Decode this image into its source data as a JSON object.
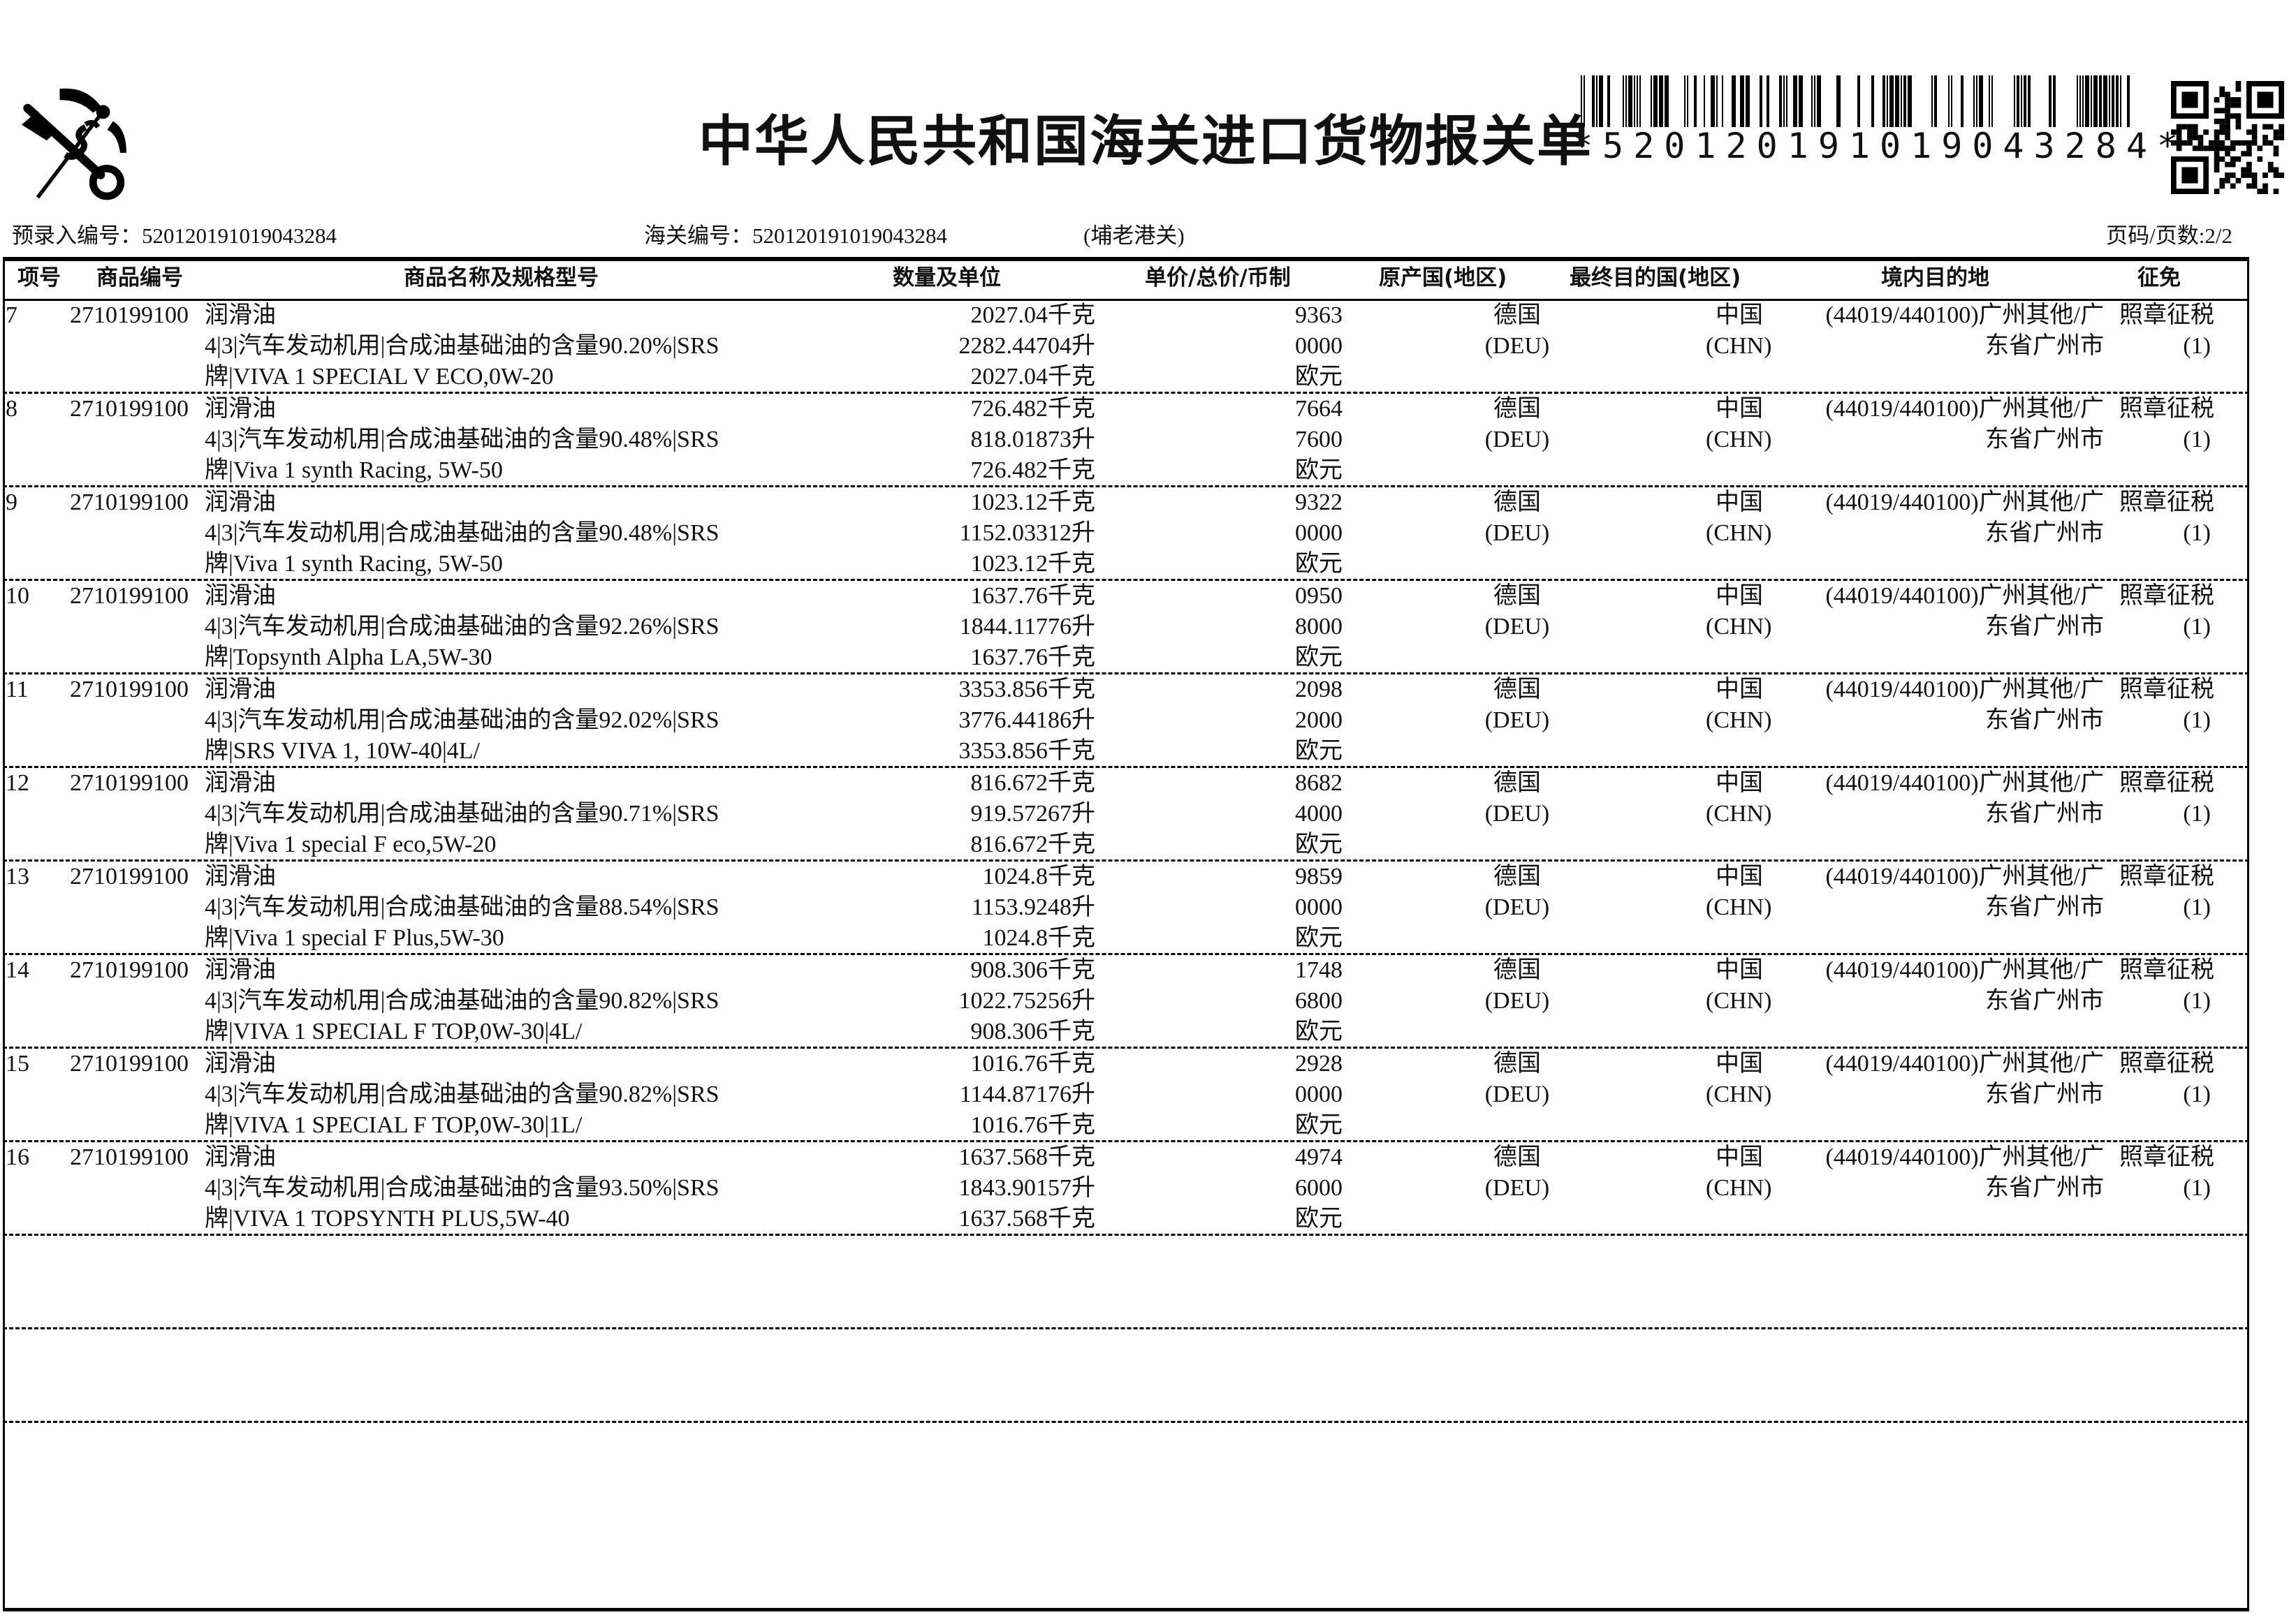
{
  "header": {
    "title": "中华人民共和国海关进口货物报关单",
    "barcode_text": "*520120191019043284*",
    "pre_entry_label": "预录入编号：",
    "pre_entry_no": "520120191019043284",
    "customs_no_label": "海关编号：",
    "customs_no": "520120191019043284",
    "customs_office": "(埔老港关)",
    "page_info": "页码/页数:2/2"
  },
  "columns": [
    "项号",
    "商品编号",
    "商品名称及规格型号",
    "数量及单位",
    "单价/总价/币制",
    "原产国(地区)",
    "最终目的国(地区)",
    "境内目的地",
    "征免"
  ],
  "rows": [
    {
      "no": "7",
      "code": "2710199100",
      "name": "润滑油",
      "spec": "4|3|汽车发动机用|合成油基础油的含量90.20%|SRS",
      "brand": "牌|VIVA 1 SPECIAL V ECO,0W-20",
      "qty": [
        "2027.04千克",
        "2282.44704升",
        "2027.04千克"
      ],
      "price": [
        "9363",
        "0000",
        "欧元"
      ],
      "origin": [
        "德国",
        "(DEU)"
      ],
      "dest_country": [
        "中国",
        "(CHN)"
      ],
      "domestic": [
        "(44019/440100)广州其他/广",
        "东省广州市"
      ],
      "levy": [
        "照章征税",
        "(1)"
      ]
    },
    {
      "no": "8",
      "code": "2710199100",
      "name": "润滑油",
      "spec": "4|3|汽车发动机用|合成油基础油的含量90.48%|SRS",
      "brand": "牌|Viva 1 synth Racing, 5W-50",
      "qty": [
        "726.482千克",
        "818.01873升",
        "726.482千克"
      ],
      "price": [
        "7664",
        "7600",
        "欧元"
      ],
      "origin": [
        "德国",
        "(DEU)"
      ],
      "dest_country": [
        "中国",
        "(CHN)"
      ],
      "domestic": [
        "(44019/440100)广州其他/广",
        "东省广州市"
      ],
      "levy": [
        "照章征税",
        "(1)"
      ]
    },
    {
      "no": "9",
      "code": "2710199100",
      "name": "润滑油",
      "spec": "4|3|汽车发动机用|合成油基础油的含量90.48%|SRS",
      "brand": "牌|Viva 1 synth Racing, 5W-50",
      "qty": [
        "1023.12千克",
        "1152.03312升",
        "1023.12千克"
      ],
      "price": [
        "9322",
        "0000",
        "欧元"
      ],
      "origin": [
        "德国",
        "(DEU)"
      ],
      "dest_country": [
        "中国",
        "(CHN)"
      ],
      "domestic": [
        "(44019/440100)广州其他/广",
        "东省广州市"
      ],
      "levy": [
        "照章征税",
        "(1)"
      ]
    },
    {
      "no": "10",
      "code": "2710199100",
      "name": "润滑油",
      "spec": "4|3|汽车发动机用|合成油基础油的含量92.26%|SRS",
      "brand": "牌|Topsynth Alpha LA,5W-30",
      "qty": [
        "1637.76千克",
        "1844.11776升",
        "1637.76千克"
      ],
      "price": [
        "0950",
        "8000",
        "欧元"
      ],
      "origin": [
        "德国",
        "(DEU)"
      ],
      "dest_country": [
        "中国",
        "(CHN)"
      ],
      "domestic": [
        "(44019/440100)广州其他/广",
        "东省广州市"
      ],
      "levy": [
        "照章征税",
        "(1)"
      ]
    },
    {
      "no": "11",
      "code": "2710199100",
      "name": "润滑油",
      "spec": "4|3|汽车发动机用|合成油基础油的含量92.02%|SRS",
      "brand": "牌|SRS VIVA 1, 10W-40|4L/",
      "qty": [
        "3353.856千克",
        "3776.44186升",
        "3353.856千克"
      ],
      "price": [
        "2098",
        "2000",
        "欧元"
      ],
      "origin": [
        "德国",
        "(DEU)"
      ],
      "dest_country": [
        "中国",
        "(CHN)"
      ],
      "domestic": [
        "(44019/440100)广州其他/广",
        "东省广州市"
      ],
      "levy": [
        "照章征税",
        "(1)"
      ]
    },
    {
      "no": "12",
      "code": "2710199100",
      "name": "润滑油",
      "spec": "4|3|汽车发动机用|合成油基础油的含量90.71%|SRS",
      "brand": "牌|Viva 1 special F eco,5W-20",
      "qty": [
        "816.672千克",
        "919.57267升",
        "816.672千克"
      ],
      "price": [
        "8682",
        "4000",
        "欧元"
      ],
      "origin": [
        "德国",
        "(DEU)"
      ],
      "dest_country": [
        "中国",
        "(CHN)"
      ],
      "domestic": [
        "(44019/440100)广州其他/广",
        "东省广州市"
      ],
      "levy": [
        "照章征税",
        "(1)"
      ]
    },
    {
      "no": "13",
      "code": "2710199100",
      "name": "润滑油",
      "spec": "4|3|汽车发动机用|合成油基础油的含量88.54%|SRS",
      "brand": "牌|Viva 1 special F Plus,5W-30",
      "qty": [
        "1024.8千克",
        "1153.9248升",
        "1024.8千克"
      ],
      "price": [
        "9859",
        "0000",
        "欧元"
      ],
      "origin": [
        "德国",
        "(DEU)"
      ],
      "dest_country": [
        "中国",
        "(CHN)"
      ],
      "domestic": [
        "(44019/440100)广州其他/广",
        "东省广州市"
      ],
      "levy": [
        "照章征税",
        "(1)"
      ]
    },
    {
      "no": "14",
      "code": "2710199100",
      "name": "润滑油",
      "spec": "4|3|汽车发动机用|合成油基础油的含量90.82%|SRS",
      "brand": "牌|VIVA 1 SPECIAL F TOP,0W-30|4L/",
      "qty": [
        "908.306千克",
        "1022.75256升",
        "908.306千克"
      ],
      "price": [
        "1748",
        "6800",
        "欧元"
      ],
      "origin": [
        "德国",
        "(DEU)"
      ],
      "dest_country": [
        "中国",
        "(CHN)"
      ],
      "domestic": [
        "(44019/440100)广州其他/广",
        "东省广州市"
      ],
      "levy": [
        "照章征税",
        "(1)"
      ]
    },
    {
      "no": "15",
      "code": "2710199100",
      "name": "润滑油",
      "spec": "4|3|汽车发动机用|合成油基础油的含量90.82%|SRS",
      "brand": "牌|VIVA 1 SPECIAL F TOP,0W-30|1L/",
      "qty": [
        "1016.76千克",
        "1144.87176升",
        "1016.76千克"
      ],
      "price": [
        "2928",
        "0000",
        "欧元"
      ],
      "origin": [
        "德国",
        "(DEU)"
      ],
      "dest_country": [
        "中国",
        "(CHN)"
      ],
      "domestic": [
        "(44019/440100)广州其他/广",
        "东省广州市"
      ],
      "levy": [
        "照章征税",
        "(1)"
      ]
    },
    {
      "no": "16",
      "code": "2710199100",
      "name": "润滑油",
      "spec": "4|3|汽车发动机用|合成油基础油的含量93.50%|SRS",
      "brand": "牌|VIVA 1 TOPSYNTH PLUS,5W-40",
      "qty": [
        "1637.568千克",
        "1843.90157升",
        "1637.568千克"
      ],
      "price": [
        "4974",
        "6000",
        "欧元"
      ],
      "origin": [
        "德国",
        "(DEU)"
      ],
      "dest_country": [
        "中国",
        "(CHN)"
      ],
      "domestic": [
        "(44019/440100)广州其他/广",
        "东省广州市"
      ],
      "levy": [
        "照章征税",
        "(1)"
      ]
    }
  ],
  "empty_rows": 3,
  "icons": {
    "logo": "customs-emblem-icon",
    "barcode": "barcode",
    "qr": "qr-code"
  }
}
